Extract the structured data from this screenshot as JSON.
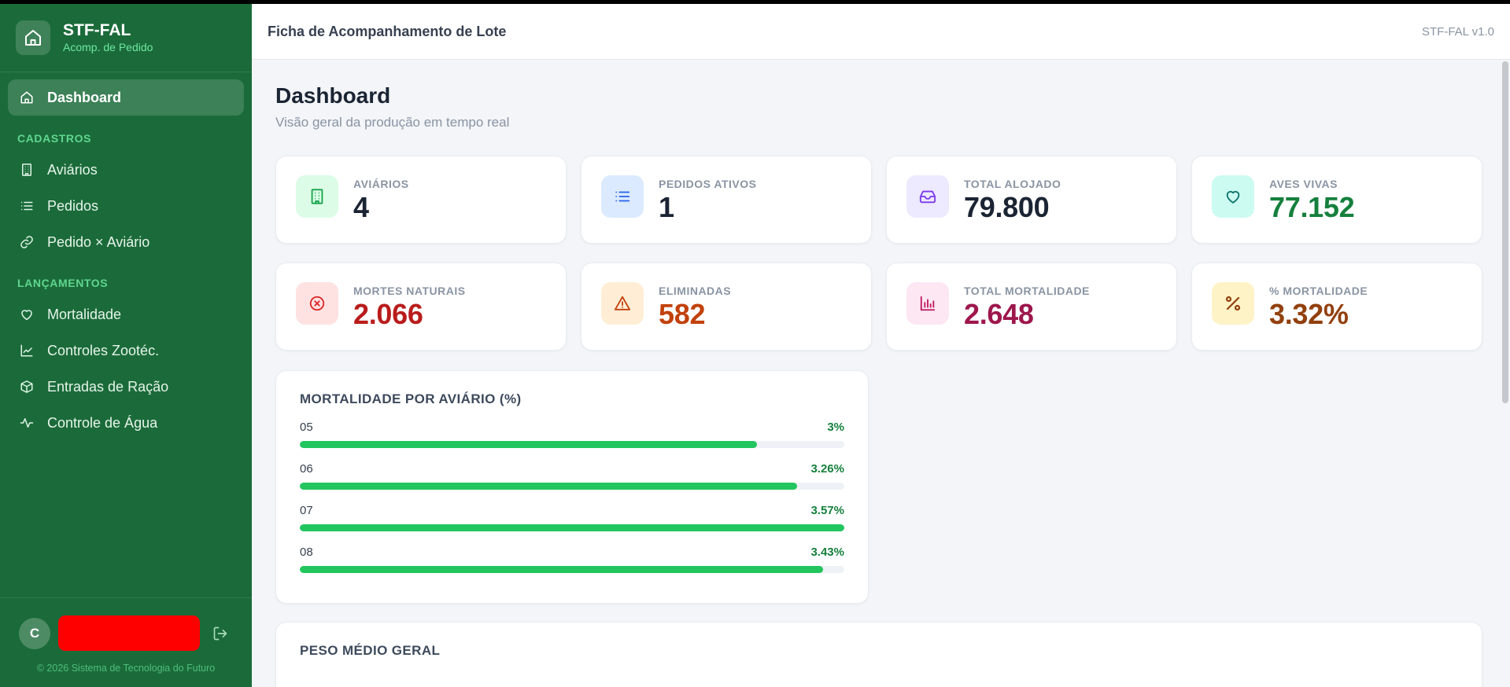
{
  "brand": {
    "title": "STF-FAL",
    "subtitle": "Acomp. de Pedido"
  },
  "nav": {
    "dashboard": "Dashboard",
    "section_cadastros": "CADASTROS",
    "avarios": "Aviários",
    "pedidos": "Pedidos",
    "pedido_aviario": "Pedido × Aviário",
    "section_lancamentos": "LANÇAMENTOS",
    "mortalidade": "Mortalidade",
    "controles": "Controles Zootéc.",
    "racao": "Entradas de Ração",
    "agua": "Controle de Água"
  },
  "user": {
    "initial": "C"
  },
  "copyright": "© 2026 Sistema de Tecnologia do Futuro",
  "topbar": {
    "title": "Ficha de Acompanhamento de Lote",
    "version": "STF-FAL v1.0"
  },
  "page": {
    "title": "Dashboard",
    "subtitle": "Visão geral da produção em tempo real"
  },
  "stats": [
    {
      "label": "AVIÁRIOS",
      "value": "4",
      "icon": "building-icon",
      "color": "#1a2433",
      "icon_bg": "#dcfce7",
      "icon_color": "#16a34a"
    },
    {
      "label": "PEDIDOS ATIVOS",
      "value": "1",
      "icon": "list-icon",
      "color": "#1a2433",
      "icon_bg": "#dbeafe",
      "icon_color": "#2563eb"
    },
    {
      "label": "TOTAL ALOJADO",
      "value": "79.800",
      "icon": "inbox-icon",
      "color": "#1a2433",
      "icon_bg": "#ede9fe",
      "icon_color": "#7c3aed"
    },
    {
      "label": "AVES VIVAS",
      "value": "77.152",
      "icon": "heart-icon",
      "color": "#15803d",
      "icon_bg": "#ccfbf1",
      "icon_color": "#0f766e"
    },
    {
      "label": "MORTES NATURAIS",
      "value": "2.066",
      "icon": "x-circle-icon",
      "color": "#b91c1c",
      "icon_bg": "#fee2e2",
      "icon_color": "#dc2626"
    },
    {
      "label": "ELIMINADAS",
      "value": "582",
      "icon": "warning-icon",
      "color": "#c2410c",
      "icon_bg": "#ffedd5",
      "icon_color": "#c2410c"
    },
    {
      "label": "TOTAL MORTALIDADE",
      "value": "2.648",
      "icon": "chart-bar-icon",
      "color": "#9d174d",
      "icon_bg": "#fce7f3",
      "icon_color": "#be185d"
    },
    {
      "label": "% MORTALIDADE",
      "value": "3.32%",
      "icon": "percent-icon",
      "color": "#92400e",
      "icon_bg": "#fef3c7",
      "icon_color": "#92400e"
    }
  ],
  "mortalidade": {
    "title": "MORTALIDADE POR AVIÁRIO (%)",
    "bars": [
      {
        "name": "05",
        "label": "3%",
        "value": 3.0
      },
      {
        "name": "06",
        "label": "3.26%",
        "value": 3.26
      },
      {
        "name": "07",
        "label": "3.57%",
        "value": 3.57
      },
      {
        "name": "08",
        "label": "3.43%",
        "value": 3.43
      }
    ]
  },
  "peso": {
    "title": "PESO MÉDIO GERAL"
  }
}
